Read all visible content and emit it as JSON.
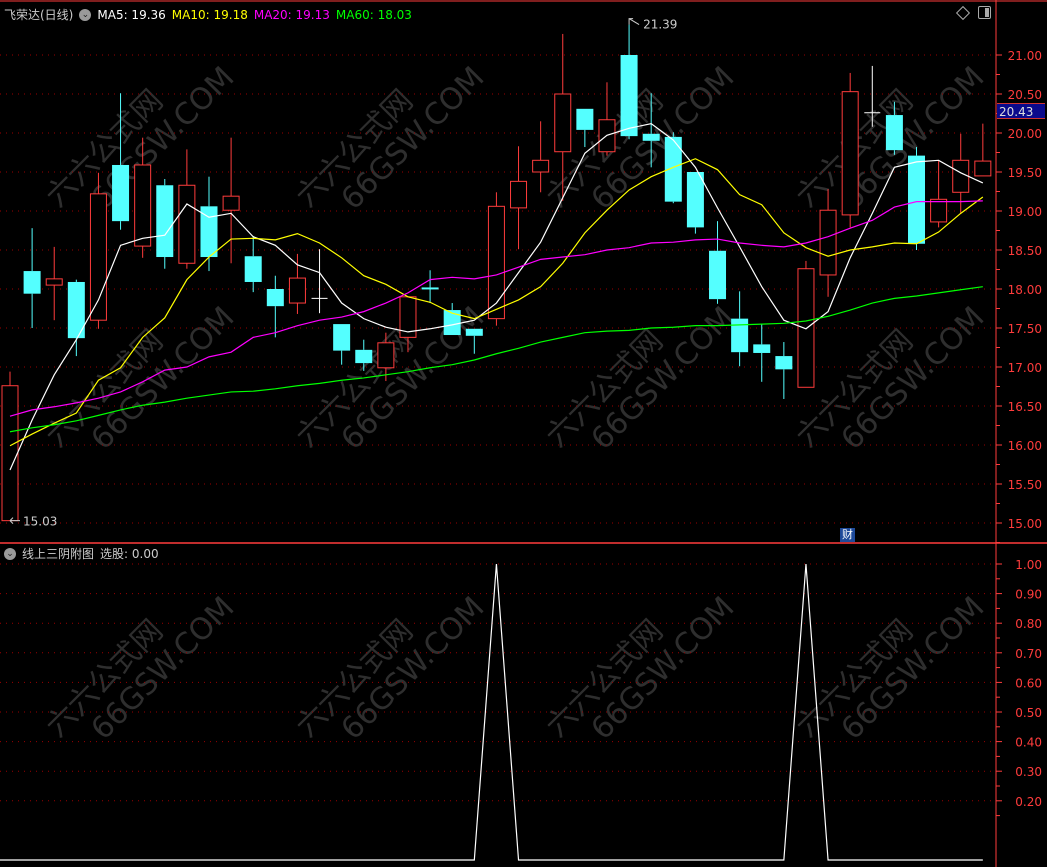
{
  "header": {
    "stock_name": "飞荣达(日线)",
    "ma5": "MA5: 19.36",
    "ma10": "MA10: 19.18",
    "ma20": "MA20: 19.13",
    "ma60": "MA60: 18.03"
  },
  "sub_header": {
    "indicator_name": "线上三阴附图",
    "value_label": "选股: 0.00"
  },
  "badge_cai": "财",
  "current_price_label": "20.43",
  "watermark": [
    "六六公式网",
    "66GSW.COM"
  ],
  "colors": {
    "up": "#ff3c3c",
    "down": "#54ffff",
    "flat": "#ffffff",
    "ma5": "#ffffff",
    "ma10": "#ffff00",
    "ma20": "#ff00ff",
    "ma60": "#00ff00",
    "axis": "#ff3c3c",
    "grid": "#9a0000",
    "indicator": "#ffffff"
  },
  "chart_data": [
    {
      "type": "candlestick",
      "ylim": [
        15.0,
        21.0
      ],
      "yticks": [
        "21.00",
        "20.50",
        "20.00",
        "19.50",
        "19.00",
        "18.50",
        "18.00",
        "17.50",
        "17.00",
        "16.50",
        "16.00",
        "15.50",
        "15.00"
      ],
      "grid": true,
      "high_label": "21.39",
      "low_label": "15.03",
      "ohlc": [
        [
          15.03,
          16.94,
          15.03,
          16.76
        ],
        [
          18.23,
          18.78,
          17.5,
          17.94
        ],
        [
          18.05,
          18.54,
          17.6,
          18.13
        ],
        [
          18.09,
          18.12,
          17.14,
          17.37
        ],
        [
          17.6,
          19.49,
          17.49,
          19.22
        ],
        [
          19.59,
          20.51,
          18.76,
          18.87
        ],
        [
          18.55,
          19.94,
          18.4,
          19.59
        ],
        [
          19.33,
          19.41,
          18.26,
          18.41
        ],
        [
          18.33,
          19.79,
          18.26,
          19.33
        ],
        [
          19.06,
          19.44,
          18.23,
          18.41
        ],
        [
          19.01,
          19.94,
          18.33,
          19.19
        ],
        [
          18.42,
          18.68,
          17.96,
          18.09
        ],
        [
          18.0,
          18.17,
          17.38,
          17.78
        ],
        [
          17.82,
          18.45,
          17.68,
          18.14
        ],
        [
          17.88,
          18.51,
          17.69,
          17.88
        ],
        [
          17.55,
          17.55,
          17.03,
          17.21
        ],
        [
          17.22,
          17.35,
          16.95,
          17.05
        ],
        [
          16.99,
          17.44,
          16.82,
          17.31
        ],
        [
          17.38,
          17.9,
          17.19,
          17.9
        ],
        [
          18.02,
          18.24,
          17.82,
          18.0
        ],
        [
          17.73,
          17.82,
          17.41,
          17.41
        ],
        [
          17.49,
          17.49,
          17.17,
          17.4
        ],
        [
          17.62,
          19.24,
          17.53,
          19.06
        ],
        [
          19.04,
          19.83,
          18.51,
          19.38
        ],
        [
          19.5,
          20.15,
          19.24,
          19.65
        ],
        [
          19.76,
          21.27,
          19.13,
          20.5
        ],
        [
          20.31,
          20.31,
          19.82,
          20.04
        ],
        [
          19.76,
          20.65,
          19.71,
          20.17
        ],
        [
          21.0,
          21.39,
          19.92,
          19.96
        ],
        [
          19.99,
          20.51,
          19.56,
          19.9
        ],
        [
          19.95,
          20.01,
          19.1,
          19.12
        ],
        [
          19.5,
          19.5,
          18.71,
          18.79
        ],
        [
          18.49,
          18.87,
          17.81,
          17.87
        ],
        [
          17.62,
          17.97,
          17.01,
          17.19
        ],
        [
          17.29,
          17.55,
          16.81,
          17.18
        ],
        [
          17.14,
          17.32,
          16.59,
          16.97
        ],
        [
          16.74,
          18.36,
          16.74,
          18.26
        ],
        [
          18.18,
          19.28,
          17.9,
          19.01
        ],
        [
          18.95,
          20.77,
          18.79,
          20.53
        ],
        [
          20.26,
          20.86,
          20.08,
          20.26
        ],
        [
          20.23,
          20.4,
          19.72,
          19.78
        ],
        [
          19.71,
          19.82,
          18.5,
          18.58
        ],
        [
          18.86,
          19.65,
          18.79,
          19.15
        ],
        [
          19.24,
          19.99,
          18.97,
          19.65
        ],
        [
          19.45,
          20.12,
          19.45,
          19.64
        ]
      ],
      "series": [
        {
          "name": "MA5",
          "values": [
            15.68,
            16.32,
            16.9,
            17.35,
            17.86,
            18.56,
            18.65,
            18.69,
            19.09,
            18.92,
            18.97,
            18.67,
            18.56,
            18.31,
            18.21,
            17.82,
            17.62,
            17.51,
            17.45,
            17.49,
            17.54,
            17.6,
            17.82,
            18.21,
            18.6,
            19.17,
            19.74,
            19.97,
            20.06,
            20.12,
            19.91,
            19.56,
            19.04,
            18.54,
            18.03,
            17.6,
            17.49,
            17.71,
            18.4,
            18.97,
            19.56,
            19.63,
            19.65,
            19.49,
            19.36
          ]
        },
        {
          "name": "MA10",
          "values": [
            15.99,
            16.14,
            16.28,
            16.41,
            16.83,
            16.99,
            17.38,
            17.63,
            18.12,
            18.41,
            18.64,
            18.65,
            18.63,
            18.71,
            18.59,
            18.4,
            18.17,
            18.06,
            17.9,
            17.83,
            17.69,
            17.62,
            17.74,
            17.86,
            18.03,
            18.33,
            18.72,
            19.01,
            19.27,
            19.44,
            19.56,
            19.67,
            19.53,
            19.21,
            19.08,
            18.72,
            18.53,
            18.42,
            18.5,
            18.54,
            18.59,
            18.58,
            18.73,
            18.97,
            19.18
          ]
        },
        {
          "name": "MA20",
          "values": [
            16.37,
            16.45,
            16.49,
            16.54,
            16.6,
            16.68,
            16.81,
            16.96,
            17.0,
            17.13,
            17.19,
            17.38,
            17.44,
            17.53,
            17.6,
            17.64,
            17.71,
            17.82,
            17.95,
            18.12,
            18.15,
            18.13,
            18.18,
            18.28,
            18.38,
            18.41,
            18.44,
            18.5,
            18.53,
            18.59,
            18.6,
            18.63,
            18.64,
            18.59,
            18.56,
            18.54,
            18.59,
            18.67,
            18.78,
            18.88,
            19.05,
            19.12,
            19.12,
            19.12,
            19.13
          ]
        },
        {
          "name": "MA60",
          "values": [
            16.17,
            16.22,
            16.26,
            16.31,
            16.38,
            16.45,
            16.51,
            16.55,
            16.6,
            16.64,
            16.68,
            16.69,
            16.72,
            16.76,
            16.79,
            16.83,
            16.86,
            16.9,
            16.94,
            16.99,
            17.03,
            17.09,
            17.17,
            17.24,
            17.32,
            17.38,
            17.44,
            17.46,
            17.47,
            17.5,
            17.51,
            17.53,
            17.53,
            17.54,
            17.55,
            17.56,
            17.59,
            17.65,
            17.73,
            17.82,
            17.88,
            17.91,
            17.95,
            17.99,
            18.03
          ]
        }
      ]
    },
    {
      "type": "line",
      "ylim": [
        0,
        1.0
      ],
      "yticks": [
        "1.00",
        "0.90",
        "0.80",
        "0.70",
        "0.60",
        "0.50",
        "0.40",
        "0.30",
        "0.20"
      ],
      "grid": true,
      "series": [
        {
          "name": "选股",
          "values": [
            0,
            0,
            0,
            0,
            0,
            0,
            0,
            0,
            0,
            0,
            0,
            0,
            0,
            0,
            0,
            0,
            0,
            0,
            0,
            0,
            0,
            0,
            1,
            0,
            0,
            0,
            0,
            0,
            0,
            0,
            0,
            0,
            0,
            0,
            0,
            0,
            1,
            0,
            0,
            0,
            0,
            0,
            0,
            0,
            0
          ]
        }
      ]
    }
  ]
}
